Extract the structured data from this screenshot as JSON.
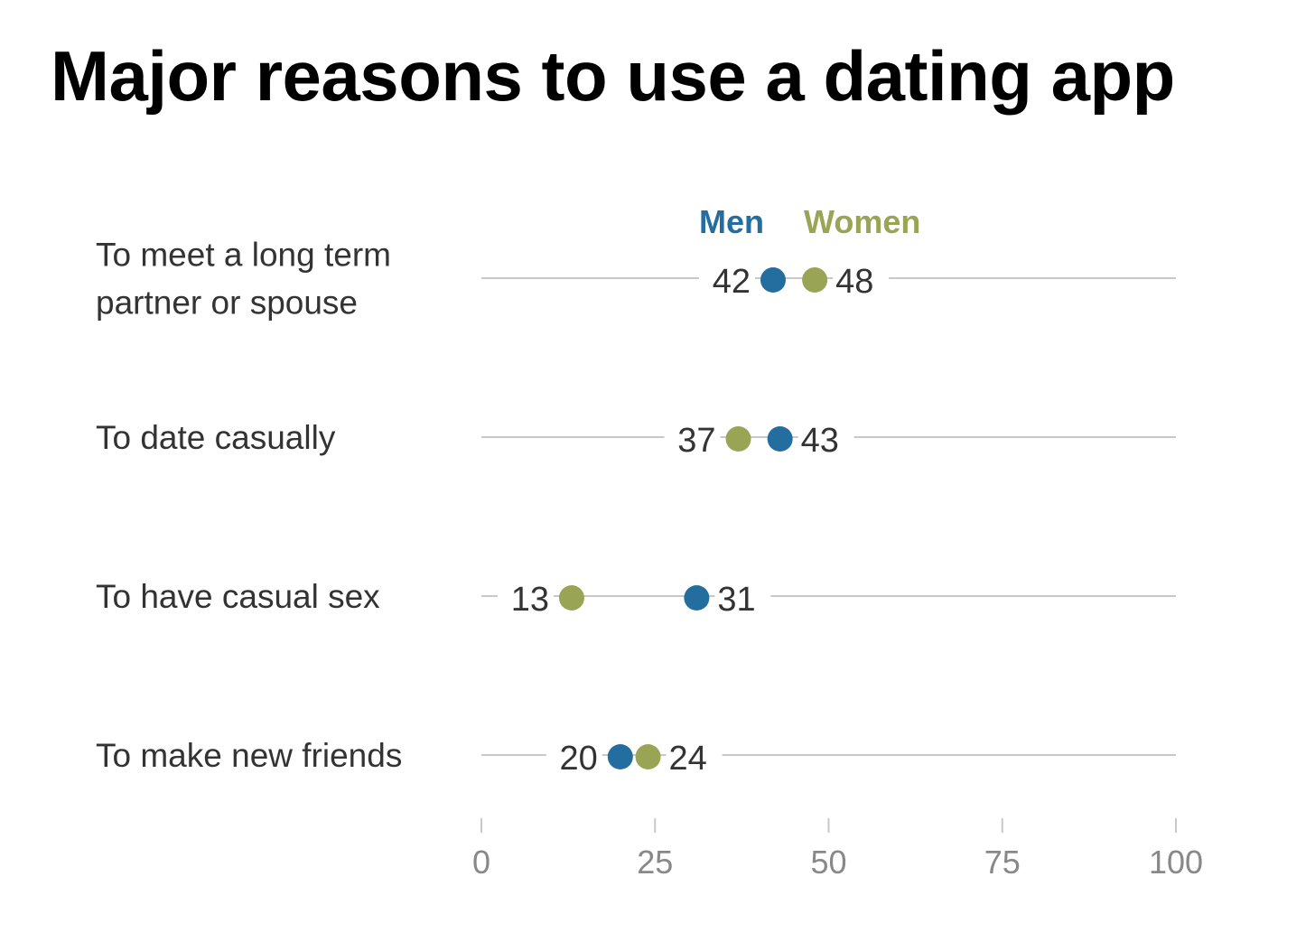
{
  "colors": {
    "men": "#236d9f",
    "women": "#9aa455",
    "rule": "#c8c8c8",
    "text": "#333333",
    "tick": "#888888"
  },
  "chart_data": {
    "type": "scatter",
    "title": "Major reasons to use a dating app",
    "categories": [
      {
        "lines": [
          "To meet a long term",
          "partner or spouse"
        ]
      },
      {
        "lines": [
          "To date casually"
        ]
      },
      {
        "lines": [
          "To have casual sex"
        ]
      },
      {
        "lines": [
          "To make new friends"
        ]
      }
    ],
    "series": [
      {
        "name": "Men",
        "values": [
          42,
          43,
          31,
          20
        ]
      },
      {
        "name": "Women",
        "values": [
          48,
          37,
          13,
          24
        ]
      }
    ],
    "xlim": [
      0,
      100
    ],
    "xticks": [
      "0",
      "25",
      "50",
      "75",
      "100"
    ],
    "legend": "top"
  }
}
